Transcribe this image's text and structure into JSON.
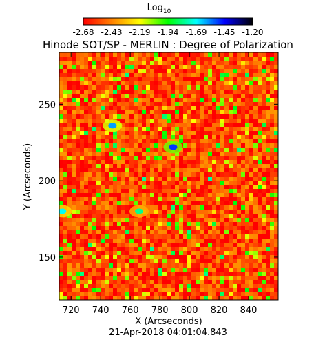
{
  "chart_data": {
    "type": "heatmap",
    "title": "Hinode SOT/SP - MERLIN : Degree of Polarization",
    "subtitle": "21-Apr-2018 04:01:04.843",
    "xlabel": "X (Arcseconds)",
    "ylabel": "Y (Arcseconds)",
    "xlim": [
      712,
      860
    ],
    "ylim": [
      122,
      284
    ],
    "x_ticks": [
      720,
      740,
      760,
      780,
      800,
      820,
      840
    ],
    "y_ticks": [
      150,
      200,
      250
    ],
    "colorbar": {
      "label_main": "Log",
      "label_sub": "10",
      "min": -2.68,
      "max": -1.2,
      "tick_labels": [
        "-2.68",
        "-2.43",
        "-2.19",
        "-1.94",
        "-1.69",
        "-1.45",
        "-1.20"
      ],
      "colormap": [
        "#ff0000",
        "#ff8000",
        "#ffff00",
        "#00ff00",
        "#00ffff",
        "#0000ff",
        "#000000"
      ]
    },
    "background_level": -2.55,
    "features": [
      {
        "name": "diagonal strand",
        "x": 748,
        "y": 236,
        "level": -1.6
      },
      {
        "name": "central feature",
        "x": 789,
        "y": 222,
        "level": -1.5
      },
      {
        "name": "left edge patch",
        "x": 714,
        "y": 180,
        "level": -1.7
      },
      {
        "name": "lower patch",
        "x": 766,
        "y": 180,
        "level": -1.8
      }
    ]
  }
}
